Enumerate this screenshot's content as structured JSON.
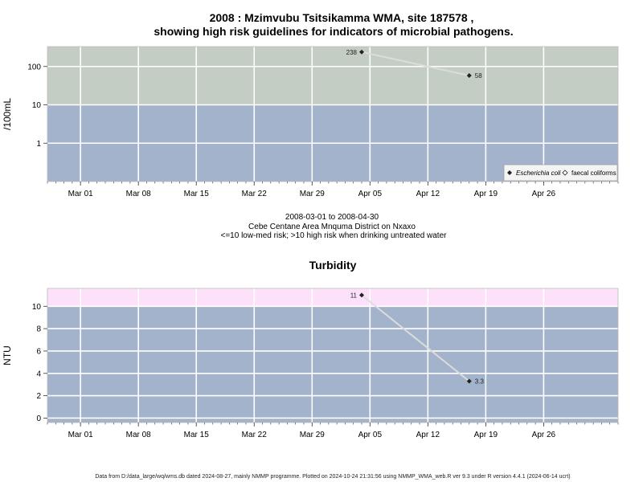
{
  "footer": "Data from D:/data_large/wq/wms.db dated 2024-08-27, mainly NMMP programme. Plotted on 2024-10-24 21:31:56 using NMMP_WMA_web.R ver 9.3 under R version 4.4.1 (2024-06-14 ucrt)",
  "subtitle": {
    "line1": "2008-03-01 to 2008-04-30",
    "line2": "Cebe Centane Area Mnquma District on Nxaxo",
    "line3": "<=10 low-med risk; >10 high risk when drinking untreated water"
  },
  "colors": {
    "low_zone": "#a2b3cb",
    "high_zone_micro": "#c3cdc3",
    "high_zone_turb": "#fde1fb",
    "grid": "#ffffff",
    "line": "#dcdcdc",
    "marker": "#222222",
    "axis": "#333333"
  },
  "chart_data": [
    {
      "type": "line",
      "title_line1": "2008 : Mzimvubu Tsitsikamma WMA, site 187578 ,",
      "title_line2": "showing high risk guidelines for indicators of microbial pathogens.",
      "ylabel": "/100mL",
      "xlabel": "",
      "yscale": "log",
      "ylim": [
        0.1,
        330
      ],
      "yticks": [
        1,
        10,
        100
      ],
      "ytick_labels": [
        "1",
        "10",
        "100"
      ],
      "threshold": 10,
      "xlim": [
        "2008-02-26",
        "2008-05-05"
      ],
      "xticks": [
        "2008-03-01",
        "2008-03-08",
        "2008-03-15",
        "2008-03-22",
        "2008-03-29",
        "2008-04-05",
        "2008-04-12",
        "2008-04-19",
        "2008-04-26"
      ],
      "xtick_labels": [
        "Mar 01",
        "Mar 08",
        "Mar 15",
        "Mar 22",
        "Mar 29",
        "Apr 05",
        "Apr 12",
        "Apr 19",
        "Apr 26"
      ],
      "grid": true,
      "legend_position": "bottom-right",
      "series": [
        {
          "name": "Escherichia coli",
          "marker": "filled-diamond",
          "points": [
            {
              "x": "2008-04-04",
              "y": 238,
              "label": "238"
            },
            {
              "x": "2008-04-17",
              "y": 58,
              "label": "58"
            }
          ]
        },
        {
          "name": "faecal coliforms",
          "marker": "open-diamond",
          "points": []
        }
      ]
    },
    {
      "type": "line",
      "title": "Turbidity",
      "ylabel": "NTU",
      "xlabel": "",
      "yscale": "linear",
      "ylim": [
        -0.4,
        11.6
      ],
      "yticks": [
        0,
        2,
        4,
        6,
        8,
        10
      ],
      "ytick_labels": [
        "0",
        "2",
        "4",
        "6",
        "8",
        "10"
      ],
      "threshold": 10,
      "xlim": [
        "2008-02-26",
        "2008-05-05"
      ],
      "xticks": [
        "2008-03-01",
        "2008-03-08",
        "2008-03-15",
        "2008-03-22",
        "2008-03-29",
        "2008-04-05",
        "2008-04-12",
        "2008-04-19",
        "2008-04-26"
      ],
      "xtick_labels": [
        "Mar 01",
        "Mar 08",
        "Mar 15",
        "Mar 22",
        "Mar 29",
        "Apr 05",
        "Apr 12",
        "Apr 19",
        "Apr 26"
      ],
      "grid": true,
      "series": [
        {
          "marker": "filled-diamond",
          "points": [
            {
              "x": "2008-04-04",
              "y": 11,
              "label": "11"
            },
            {
              "x": "2008-04-17",
              "y": 3.3,
              "label": "3.3"
            }
          ]
        }
      ]
    }
  ]
}
